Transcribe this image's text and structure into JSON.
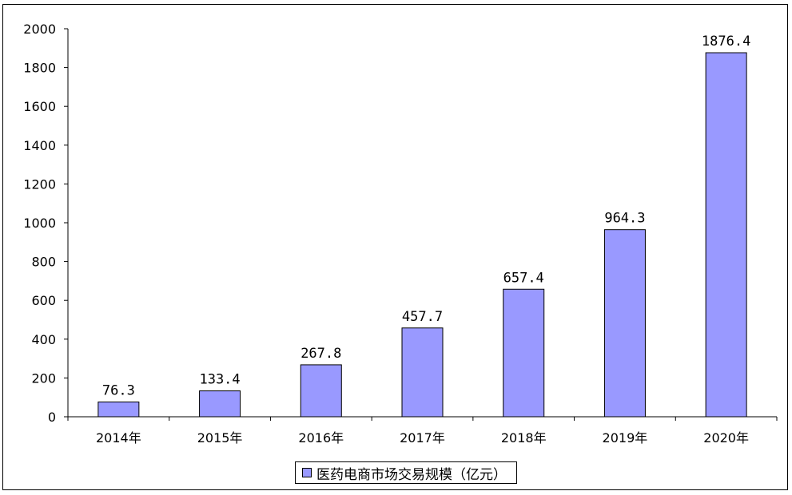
{
  "chart_data": {
    "type": "bar",
    "categories": [
      "2014年",
      "2015年",
      "2016年",
      "2017年",
      "2018年",
      "2019年",
      "2020年"
    ],
    "series": [
      {
        "name": "医药电商市场交易规模（亿元）",
        "values": [
          76.3,
          133.4,
          267.8,
          457.7,
          657.4,
          964.3,
          1876.4
        ],
        "labels": [
          "76.3",
          "133.4",
          "267.8",
          "457.7",
          "657.4",
          "964.3",
          "1876.4"
        ],
        "color": "#9999ff"
      }
    ],
    "yticks": [
      "0",
      "200",
      "400",
      "600",
      "800",
      "1000",
      "1200",
      "1400",
      "1600",
      "1800",
      "2000"
    ],
    "ylim": [
      0,
      2000
    ],
    "grid": false,
    "legend_position": "bottom",
    "border_color": "#000000"
  }
}
